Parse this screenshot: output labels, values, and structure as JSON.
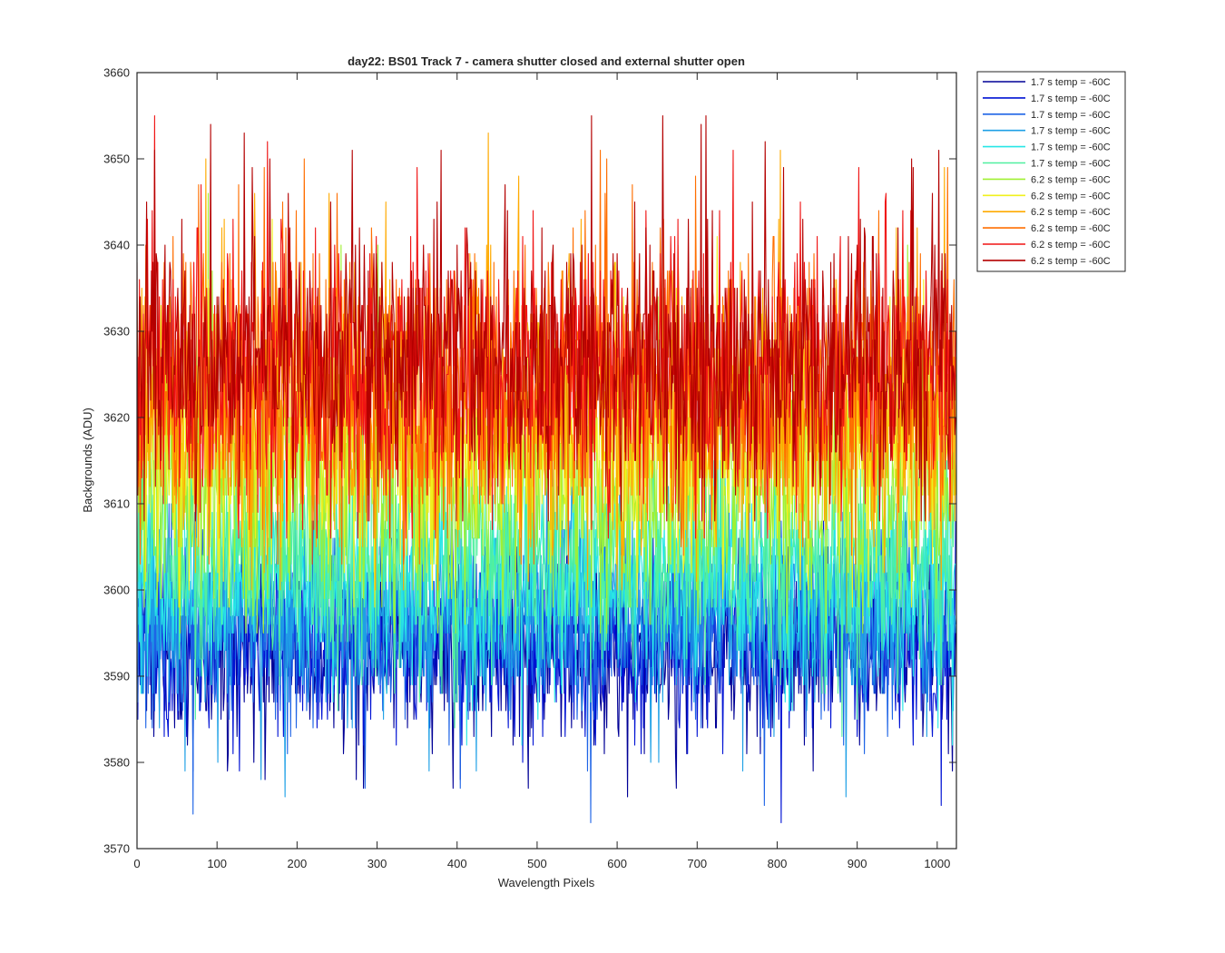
{
  "chart_data": {
    "type": "line",
    "title": "day22: BS01  Track 7 - camera shutter closed and external shutter open",
    "xlabel": "Wavelength Pixels",
    "ylabel": "Backgrounds (ADU)",
    "xlim": [
      0,
      1024
    ],
    "ylim": [
      3570,
      3660
    ],
    "xticks": [
      "0",
      "100",
      "200",
      "300",
      "400",
      "500",
      "600",
      "700",
      "800",
      "900",
      "1000"
    ],
    "yticks": [
      "3570",
      "3580",
      "3590",
      "3600",
      "3610",
      "3620",
      "3630",
      "3640",
      "3650",
      "3660"
    ],
    "grid": false,
    "legend_position": "outside-top-right",
    "points_per_series": 1024,
    "series": [
      {
        "name": "1.7 s temp = -60C",
        "color": "#000096",
        "mean": 3593,
        "min": 3574,
        "max": 3606
      },
      {
        "name": "1.7 s temp = -60C",
        "color": "#0012d4",
        "mean": 3594,
        "min": 3570,
        "max": 3608
      },
      {
        "name": "1.7 s temp = -60C",
        "color": "#1e64e6",
        "mean": 3596,
        "min": 3572,
        "max": 3610
      },
      {
        "name": "1.7 s temp = -60C",
        "color": "#1ea0e6",
        "mean": 3598,
        "min": 3575,
        "max": 3612
      },
      {
        "name": "1.7 s temp = -60C",
        "color": "#28e6e6",
        "mean": 3601,
        "min": 3580,
        "max": 3615
      },
      {
        "name": "1.7 s temp = -60C",
        "color": "#50f0a0",
        "mean": 3604,
        "min": 3583,
        "max": 3620
      },
      {
        "name": "6.2 s temp = -60C",
        "color": "#a0f032",
        "mean": 3613,
        "min": 3595,
        "max": 3647
      },
      {
        "name": "6.2 s temp = -60C",
        "color": "#f0f01e",
        "mean": 3617,
        "min": 3598,
        "max": 3647
      },
      {
        "name": "6.2 s temp = -60C",
        "color": "#ffaa00",
        "mean": 3621,
        "min": 3600,
        "max": 3653
      },
      {
        "name": "6.2 s temp = -60C",
        "color": "#ff6e00",
        "mean": 3624,
        "min": 3603,
        "max": 3652
      },
      {
        "name": "6.2 s temp = -60C",
        "color": "#f01414",
        "mean": 3626,
        "min": 3606,
        "max": 3656
      },
      {
        "name": "6.2 s temp = -60C",
        "color": "#b40000",
        "mean": 3627,
        "min": 3608,
        "max": 3656
      }
    ]
  }
}
